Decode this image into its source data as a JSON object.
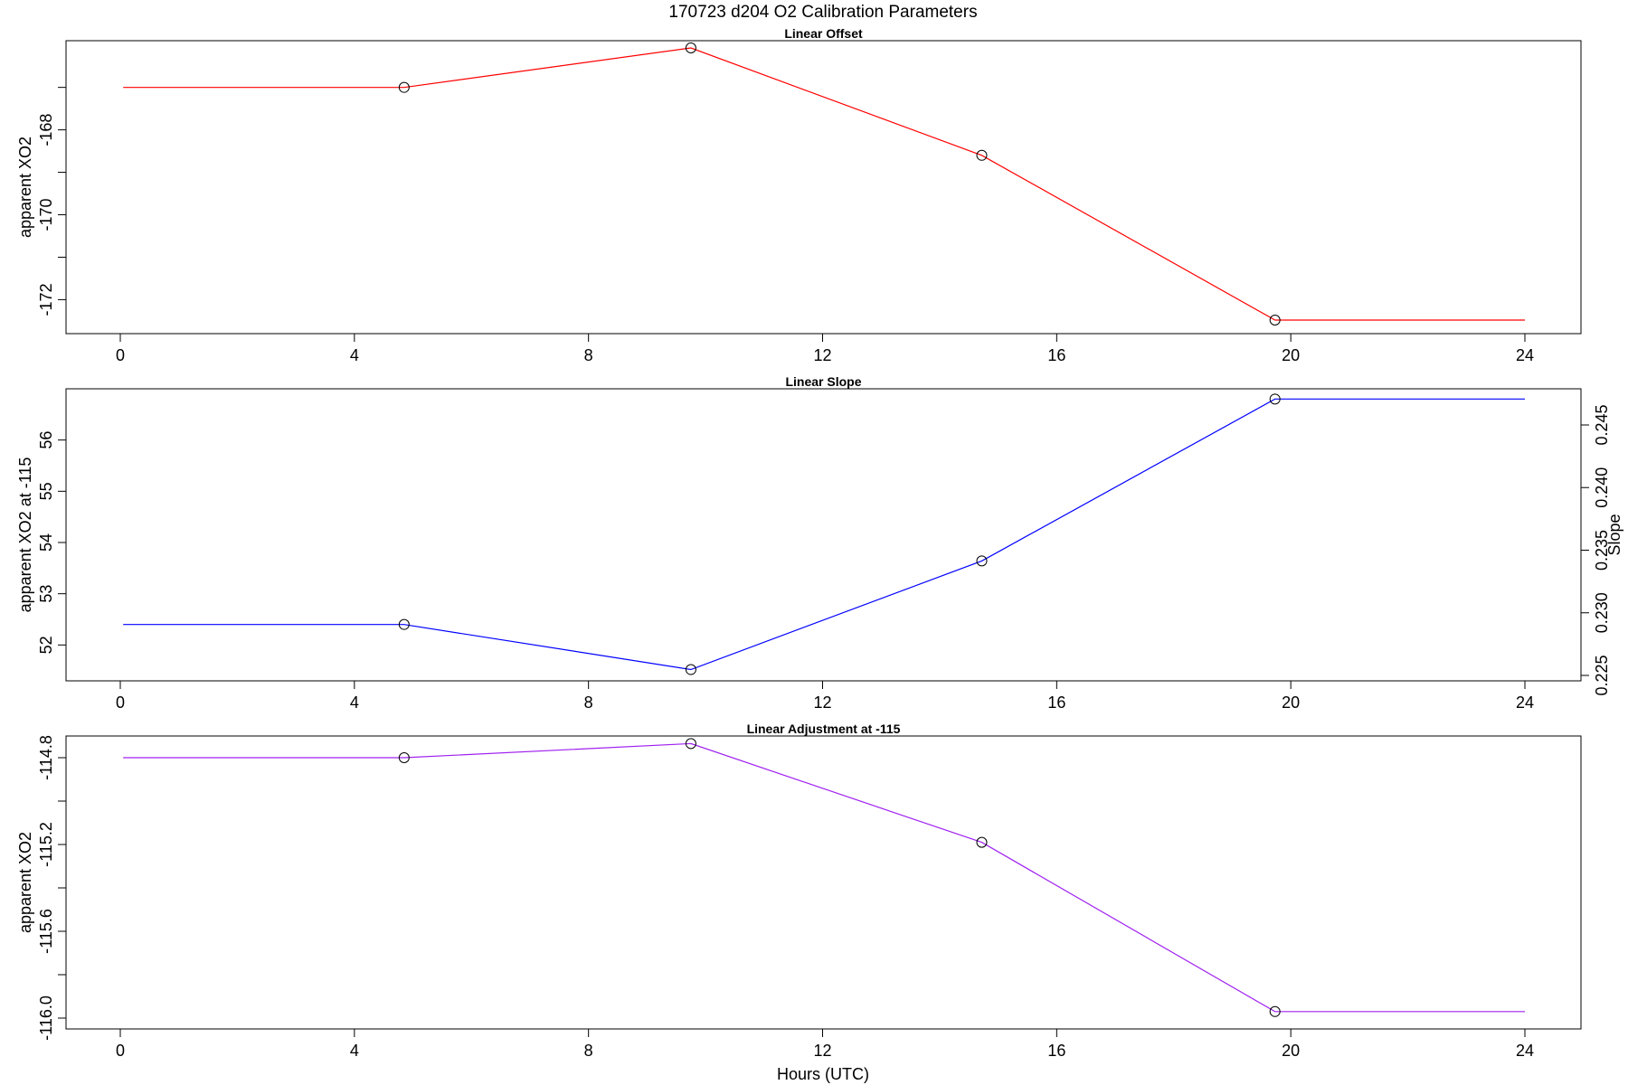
{
  "figure": {
    "title": "170723   d204   O2 Calibration Parameters",
    "xlabel": "Hours (UTC)"
  },
  "chart_data": [
    {
      "type": "line",
      "title": "Linear Offset",
      "ylabel": "apparent XO2",
      "xlabel": "",
      "xlim": [
        0,
        24
      ],
      "ylim": [
        -172.8,
        -165.9
      ],
      "xticks": [
        0,
        4,
        8,
        12,
        16,
        20,
        24
      ],
      "yticks": [
        -172,
        -171,
        -170,
        -169,
        -168,
        -167
      ],
      "ytick_labels": [
        "-172",
        "",
        "-170",
        "",
        "-168",
        ""
      ],
      "color": "#ff0000",
      "x": [
        0.05,
        4.85,
        9.75,
        14.72,
        19.73,
        24.0
      ],
      "y": [
        -167.0,
        -167.0,
        -166.07,
        -168.6,
        -172.48,
        -172.48
      ],
      "markers": [
        1,
        2,
        3,
        4
      ],
      "grid": false
    },
    {
      "type": "line",
      "title": "Linear Slope",
      "ylabel": "apparent XO2 at -115",
      "ylabel_right": "Slope",
      "xlabel": "",
      "xlim": [
        0,
        24
      ],
      "ylim": [
        51.3,
        57.0
      ],
      "xticks": [
        0,
        4,
        8,
        12,
        16,
        20,
        24
      ],
      "yticks": [
        52,
        53,
        54,
        55,
        56
      ],
      "yticks_right": [
        "0.225",
        "0.230",
        "0.235",
        "0.240",
        "0.245"
      ],
      "color": "#0000ff",
      "x": [
        0.05,
        4.85,
        9.75,
        14.72,
        19.73,
        24.0
      ],
      "y": [
        52.4,
        52.4,
        51.52,
        53.64,
        56.8,
        56.8
      ],
      "markers": [
        1,
        2,
        3,
        4
      ],
      "grid": false
    },
    {
      "type": "line",
      "title": "Linear Adjustment at -115",
      "ylabel": "apparent XO2",
      "xlabel": "Hours (UTC)",
      "xlim": [
        0,
        24
      ],
      "ylim": [
        -116.05,
        -114.7
      ],
      "xticks": [
        0,
        4,
        8,
        12,
        16,
        20,
        24
      ],
      "yticks": [
        -116.0,
        -115.8,
        -115.6,
        -115.4,
        -115.2,
        -115.0,
        -114.8
      ],
      "ytick_labels": [
        "-116.0",
        "",
        "-115.6",
        "",
        "-115.2",
        "",
        "-114.8"
      ],
      "color": "#a020f0",
      "x": [
        0.05,
        4.85,
        9.75,
        14.72,
        19.73,
        24.0
      ],
      "y": [
        -114.8,
        -114.8,
        -114.735,
        -115.19,
        -115.97,
        -115.97
      ],
      "markers": [
        1,
        2,
        3,
        4
      ],
      "grid": false
    }
  ]
}
